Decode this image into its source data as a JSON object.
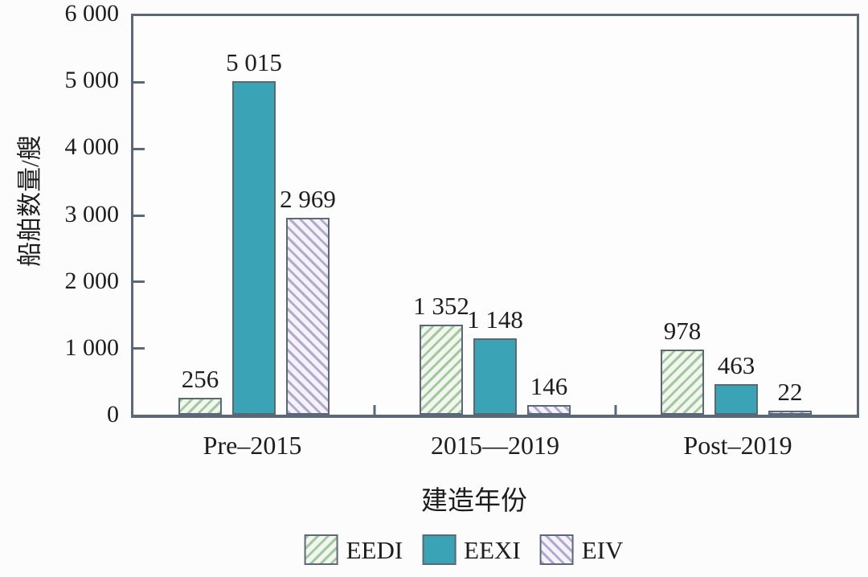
{
  "figure": {
    "background": "#fcfcfc",
    "frame_color": "#5b6878",
    "text_color": "#1d1d1d"
  },
  "chart_data": {
    "type": "bar",
    "title": "",
    "xlabel": "建造年份",
    "ylabel": "船舶数量/艘",
    "categories": [
      "Pre–2015",
      "2015—2019",
      "Post–2019"
    ],
    "series": [
      {
        "name": "EEDI",
        "values": [
          256,
          1352,
          978
        ],
        "value_labels": [
          "256",
          "1 352",
          "978"
        ],
        "fill": "hatch-forward",
        "stripe_color": "#a3c89d",
        "base_color": "#f1f7ee"
      },
      {
        "name": "EEXI",
        "values": [
          5015,
          1148,
          463
        ],
        "value_labels": [
          "5 015",
          "1 148",
          "463"
        ],
        "fill": "solid",
        "color": "#3aa3b5"
      },
      {
        "name": "EIV",
        "values": [
          2969,
          146,
          22
        ],
        "value_labels": [
          "2 969",
          "146",
          "22"
        ],
        "fill": "hatch-back",
        "stripe_color": "#b2a9ce",
        "base_color": "#f5f3fa"
      }
    ],
    "ylim": [
      0,
      6000
    ],
    "yticks": [
      {
        "value": 0,
        "label": "0"
      },
      {
        "value": 1000,
        "label": "1 000"
      },
      {
        "value": 2000,
        "label": "2 000"
      },
      {
        "value": 3000,
        "label": "3 000"
      },
      {
        "value": 4000,
        "label": "4 000"
      },
      {
        "value": 5000,
        "label": "5 000"
      },
      {
        "value": 6000,
        "label": "6 000"
      }
    ],
    "grid": false,
    "legend_position": "bottom"
  }
}
